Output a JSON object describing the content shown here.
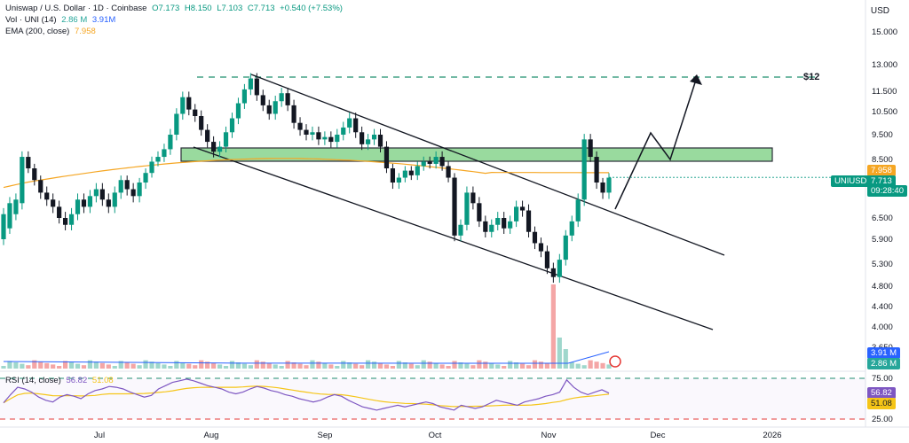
{
  "header": {
    "symbol": "Uniswap / U.S. Dollar · 1D · Coinbase",
    "open": "O7.173",
    "high": "H8.150",
    "low": "L7.103",
    "close": "C7.713",
    "change": "+0.540 (+7.53%)",
    "vol_label": "Vol · UNI (14)",
    "vol_val1": "2.86 M",
    "vol_val2": "3.91M",
    "ema_label": "EMA (200, close)",
    "ema_val": "7.958",
    "rsi_label": "RSI (14, close)",
    "rsi_val1": "56.82",
    "rsi_val2": "51.08",
    "currency": "USD"
  },
  "price_badges": {
    "ema": "7.958",
    "symbol": "UNIUSD",
    "last": "7.713",
    "countdown": "09:28:40",
    "vol_ma": "3.91 M",
    "vol": "2.86 M",
    "rsi": "56.82",
    "rsi_ma": "51.08"
  },
  "annotation": "$12",
  "colors": {
    "up": "#089981",
    "down": "#131722",
    "ema": "#f5a623",
    "zone": "#8fd694",
    "rsi": "#7e57c2",
    "rsi_ma": "#f5c518",
    "dashed_green": "#1e8f6e",
    "dashed_red": "#e53935"
  },
  "chart_data": {
    "type": "candlestick",
    "price_ticks": [
      15.0,
      13.0,
      11.5,
      10.5,
      9.5,
      8.5,
      7.5,
      6.5,
      5.9,
      5.3,
      4.8,
      4.4,
      4.0,
      3.65
    ],
    "price_tick_labels": [
      "15.000",
      "13.000",
      "11.500",
      "10.500",
      "9.500",
      "8.500",
      "7.500",
      "6.500",
      "5.900",
      "5.300",
      "4.800",
      "4.400",
      "4.000",
      "3.650"
    ],
    "x_labels": [
      "Jul",
      "Aug",
      "Sep",
      "Oct",
      "Nov",
      "Dec",
      "2026"
    ],
    "ohlc_points": [
      [
        5.9,
        6.6
      ],
      [
        6.2,
        6.9
      ],
      [
        6.6,
        7.0
      ],
      [
        6.9,
        8.6
      ],
      [
        8.6,
        8.1
      ],
      [
        8.1,
        7.6
      ],
      [
        7.6,
        7.2
      ],
      [
        7.2,
        7.0
      ],
      [
        7.0,
        6.8
      ],
      [
        6.8,
        6.5
      ],
      [
        6.5,
        6.3
      ],
      [
        6.3,
        6.6
      ],
      [
        6.6,
        7.0
      ],
      [
        7.0,
        6.8
      ],
      [
        6.8,
        7.1
      ],
      [
        7.1,
        7.3
      ],
      [
        7.3,
        7.0
      ],
      [
        7.0,
        6.8
      ],
      [
        6.8,
        7.2
      ],
      [
        7.2,
        7.6
      ],
      [
        7.6,
        7.3
      ],
      [
        7.3,
        7.1
      ],
      [
        7.1,
        7.5
      ],
      [
        7.5,
        7.9
      ],
      [
        7.9,
        8.4
      ],
      [
        8.4,
        8.6
      ],
      [
        8.6,
        8.9
      ],
      [
        8.9,
        9.5
      ],
      [
        9.5,
        10.4
      ],
      [
        10.4,
        11.2
      ],
      [
        11.2,
        10.6
      ],
      [
        10.6,
        10.3
      ],
      [
        10.3,
        9.7
      ],
      [
        9.7,
        9.2
      ],
      [
        9.2,
        8.8
      ],
      [
        8.8,
        9.0
      ],
      [
        9.0,
        9.6
      ],
      [
        9.6,
        10.2
      ],
      [
        10.2,
        10.9
      ],
      [
        10.9,
        11.6
      ],
      [
        11.6,
        12.2
      ],
      [
        12.2,
        11.3
      ],
      [
        11.3,
        10.8
      ],
      [
        10.8,
        10.4
      ],
      [
        10.4,
        11.0
      ],
      [
        11.0,
        11.4
      ],
      [
        11.4,
        10.8
      ],
      [
        10.8,
        10.0
      ],
      [
        10.0,
        9.7
      ],
      [
        9.7,
        9.5
      ],
      [
        9.5,
        9.6
      ],
      [
        9.6,
        9.3
      ],
      [
        9.3,
        9.4
      ],
      [
        9.4,
        9.2
      ],
      [
        9.2,
        9.5
      ],
      [
        9.5,
        9.8
      ],
      [
        9.8,
        10.2
      ],
      [
        10.2,
        9.6
      ],
      [
        9.6,
        9.1
      ],
      [
        9.1,
        9.3
      ],
      [
        9.3,
        9.5
      ],
      [
        9.5,
        9.0
      ],
      [
        9.0,
        8.1
      ],
      [
        8.1,
        7.5
      ],
      [
        7.5,
        7.7
      ],
      [
        7.7,
        8.0
      ],
      [
        8.0,
        7.8
      ],
      [
        7.8,
        8.2
      ],
      [
        8.2,
        8.4
      ],
      [
        8.4,
        8.3
      ],
      [
        8.3,
        8.6
      ],
      [
        8.6,
        8.2
      ],
      [
        8.2,
        7.7
      ],
      [
        7.7,
        6.0
      ],
      [
        6.0,
        6.3
      ],
      [
        6.3,
        7.2
      ],
      [
        7.2,
        6.9
      ],
      [
        6.9,
        6.4
      ],
      [
        6.4,
        6.1
      ],
      [
        6.1,
        6.3
      ],
      [
        6.3,
        6.5
      ],
      [
        6.5,
        6.2
      ],
      [
        6.2,
        6.4
      ],
      [
        6.4,
        6.8
      ],
      [
        6.8,
        6.7
      ],
      [
        6.7,
        6.1
      ],
      [
        6.1,
        5.8
      ],
      [
        5.8,
        5.6
      ],
      [
        5.6,
        5.2
      ],
      [
        5.2,
        5.0
      ],
      [
        5.0,
        5.4
      ],
      [
        5.4,
        6.0
      ],
      [
        6.0,
        6.4
      ],
      [
        6.4,
        7.0
      ],
      [
        7.0,
        9.3
      ],
      [
        9.3,
        8.6
      ],
      [
        8.6,
        7.5
      ],
      [
        7.5,
        7.2
      ],
      [
        7.2,
        7.7
      ]
    ],
    "rsi_ticks": [
      75.0,
      50.0,
      25.0
    ],
    "rsi_tick_labels": [
      "75.00",
      "50.00",
      "25.00"
    ],
    "rsi_values": [
      45,
      55,
      64,
      62,
      58,
      52,
      48,
      46,
      52,
      55,
      53,
      50,
      56,
      60,
      62,
      65,
      64,
      62,
      58,
      55,
      52,
      54,
      62,
      66,
      70,
      72,
      74,
      72,
      69,
      66,
      64,
      62,
      58,
      56,
      58,
      62,
      65,
      63,
      60,
      58,
      55,
      53,
      50,
      48,
      46,
      48,
      52,
      55,
      53,
      48,
      44,
      40,
      38,
      36,
      38,
      40,
      42,
      40,
      42,
      44,
      46,
      44,
      40,
      38,
      36,
      42,
      40,
      38,
      40,
      44,
      48,
      46,
      44,
      42,
      46,
      48,
      50,
      53,
      55,
      58,
      73,
      64,
      58,
      55,
      58,
      61,
      56.82
    ]
  }
}
